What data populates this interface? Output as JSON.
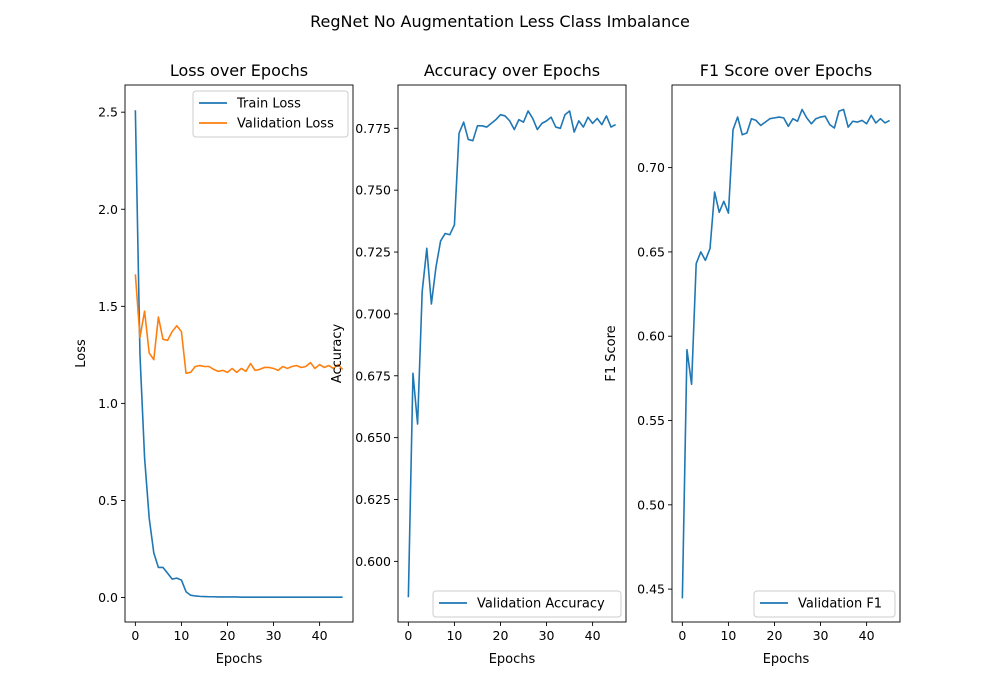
{
  "figure_title": "RegNet No Augmentation Less Class Imbalance",
  "colors": {
    "series1": "#1f77b4",
    "series2": "#ff7f0e"
  },
  "chart_data": [
    {
      "type": "line",
      "title": "Loss over Epochs",
      "xlabel": "Epochs",
      "ylabel": "Loss",
      "xlim": [
        -2.25,
        47.25
      ],
      "ylim": [
        -0.126,
        2.64
      ],
      "xticks": [
        0,
        10,
        20,
        30,
        40
      ],
      "yticks": [
        0.0,
        0.5,
        1.0,
        1.5,
        2.0,
        2.5
      ],
      "ytick_labels": [
        "0.0",
        "0.5",
        "1.0",
        "1.5",
        "2.0",
        "2.5"
      ],
      "legend_position": "top-right",
      "grid": false,
      "x": [
        0,
        1,
        2,
        3,
        4,
        5,
        6,
        7,
        8,
        9,
        10,
        11,
        12,
        13,
        14,
        15,
        16,
        17,
        18,
        19,
        20,
        21,
        22,
        23,
        24,
        25,
        26,
        27,
        28,
        29,
        30,
        31,
        32,
        33,
        34,
        35,
        36,
        37,
        38,
        39,
        40,
        41,
        42,
        43,
        44,
        45
      ],
      "series": [
        {
          "name": "Train Loss",
          "color": "#1f77b4",
          "values": [
            2.51,
            1.25,
            0.72,
            0.41,
            0.23,
            0.155,
            0.155,
            0.125,
            0.095,
            0.1,
            0.09,
            0.03,
            0.012,
            0.008,
            0.006,
            0.005,
            0.004,
            0.004,
            0.003,
            0.003,
            0.003,
            0.003,
            0.003,
            0.002,
            0.002,
            0.002,
            0.002,
            0.002,
            0.002,
            0.002,
            0.002,
            0.002,
            0.002,
            0.002,
            0.002,
            0.002,
            0.002,
            0.002,
            0.002,
            0.002,
            0.002,
            0.002,
            0.002,
            0.002,
            0.002,
            0.002
          ]
        },
        {
          "name": "Validation Loss",
          "color": "#ff7f0e",
          "values": [
            1.665,
            1.34,
            1.475,
            1.26,
            1.225,
            1.445,
            1.33,
            1.325,
            1.37,
            1.4,
            1.37,
            1.155,
            1.16,
            1.19,
            1.195,
            1.19,
            1.19,
            1.175,
            1.165,
            1.17,
            1.16,
            1.18,
            1.16,
            1.18,
            1.165,
            1.205,
            1.17,
            1.175,
            1.185,
            1.185,
            1.18,
            1.17,
            1.19,
            1.18,
            1.19,
            1.195,
            1.185,
            1.19,
            1.21,
            1.18,
            1.2,
            1.185,
            1.195,
            1.18,
            1.2,
            1.175
          ]
        }
      ]
    },
    {
      "type": "line",
      "title": "Accuracy over Epochs",
      "xlabel": "Epochs",
      "ylabel": "Accuracy",
      "xlim": [
        -2.25,
        47.25
      ],
      "ylim": [
        0.5755,
        0.7925
      ],
      "xticks": [
        0,
        10,
        20,
        30,
        40
      ],
      "yticks": [
        0.6,
        0.625,
        0.65,
        0.675,
        0.7,
        0.725,
        0.75,
        0.775
      ],
      "ytick_labels": [
        "0.600",
        "0.625",
        "0.650",
        "0.675",
        "0.700",
        "0.725",
        "0.750",
        "0.775"
      ],
      "legend_position": "lower-right",
      "grid": false,
      "x": [
        0,
        1,
        2,
        3,
        4,
        5,
        6,
        7,
        8,
        9,
        10,
        11,
        12,
        13,
        14,
        15,
        16,
        17,
        18,
        19,
        20,
        21,
        22,
        23,
        24,
        25,
        26,
        27,
        28,
        29,
        30,
        31,
        32,
        33,
        34,
        35,
        36,
        37,
        38,
        39,
        40,
        41,
        42,
        43,
        44,
        45
      ],
      "series": [
        {
          "name": "Validation Accuracy",
          "color": "#1f77b4",
          "values": [
            0.5855,
            0.676,
            0.6555,
            0.709,
            0.7265,
            0.704,
            0.719,
            0.7295,
            0.7325,
            0.732,
            0.736,
            0.773,
            0.7775,
            0.7705,
            0.77,
            0.776,
            0.776,
            0.7755,
            0.777,
            0.7785,
            0.7805,
            0.78,
            0.778,
            0.7745,
            0.7785,
            0.7775,
            0.782,
            0.779,
            0.7745,
            0.777,
            0.778,
            0.7795,
            0.7755,
            0.775,
            0.7805,
            0.782,
            0.7735,
            0.778,
            0.7755,
            0.7795,
            0.777,
            0.779,
            0.7765,
            0.78,
            0.7755,
            0.7765
          ]
        }
      ]
    },
    {
      "type": "line",
      "title": "F1 Score over Epochs",
      "xlabel": "Epochs",
      "ylabel": "F1 Score",
      "xlim": [
        -2.25,
        47.25
      ],
      "ylim": [
        0.4305,
        0.749
      ],
      "xticks": [
        0,
        10,
        20,
        30,
        40
      ],
      "yticks": [
        0.45,
        0.5,
        0.55,
        0.6,
        0.65,
        0.7
      ],
      "ytick_labels": [
        "0.45",
        "0.50",
        "0.55",
        "0.60",
        "0.65",
        "0.70"
      ],
      "legend_position": "lower-right",
      "grid": false,
      "x": [
        0,
        1,
        2,
        3,
        4,
        5,
        6,
        7,
        8,
        9,
        10,
        11,
        12,
        13,
        14,
        15,
        16,
        17,
        18,
        19,
        20,
        21,
        22,
        23,
        24,
        25,
        26,
        27,
        28,
        29,
        30,
        31,
        32,
        33,
        34,
        35,
        36,
        37,
        38,
        39,
        40,
        41,
        42,
        43,
        44,
        45
      ],
      "series": [
        {
          "name": "Validation F1",
          "color": "#1f77b4",
          "values": [
            0.4445,
            0.592,
            0.5715,
            0.643,
            0.65,
            0.645,
            0.652,
            0.6855,
            0.6735,
            0.68,
            0.673,
            0.7225,
            0.73,
            0.7195,
            0.7205,
            0.729,
            0.728,
            0.725,
            0.727,
            0.729,
            0.7295,
            0.73,
            0.7295,
            0.7245,
            0.729,
            0.7275,
            0.7345,
            0.7295,
            0.726,
            0.729,
            0.73,
            0.7305,
            0.7255,
            0.7235,
            0.7335,
            0.7345,
            0.724,
            0.7275,
            0.727,
            0.728,
            0.726,
            0.731,
            0.7265,
            0.729,
            0.7265,
            0.728
          ]
        }
      ]
    }
  ]
}
